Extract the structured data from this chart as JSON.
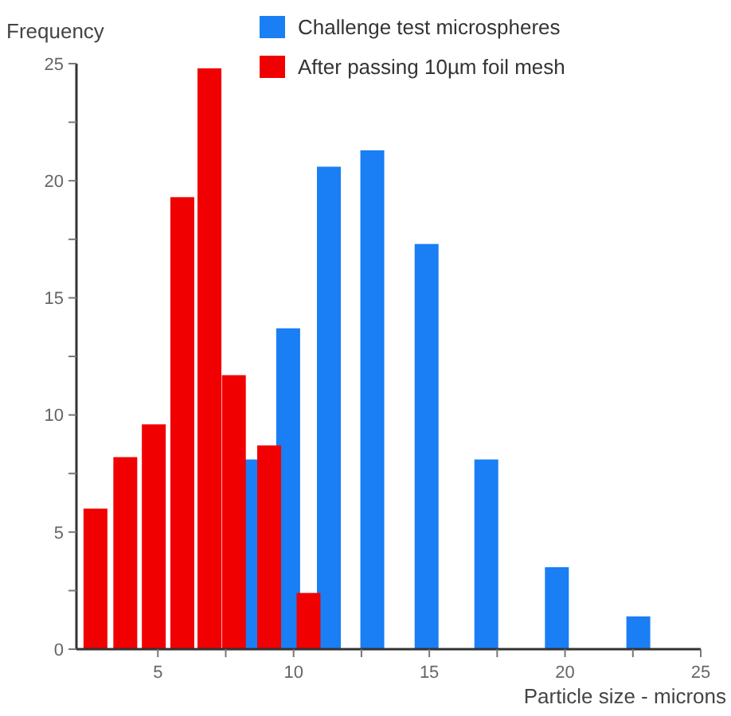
{
  "chart_data": {
    "type": "bar",
    "xlabel": "Particle size - microns",
    "ylabel": "Frequency",
    "xlim": [
      2,
      25
    ],
    "xticks": [
      5,
      {
        "value": 7.5,
        "label": null
      },
      10,
      {
        "value": 12.5,
        "label": null
      },
      15,
      {
        "value": 17.5,
        "label": null
      },
      20,
      {
        "value": 22.5,
        "label": null
      },
      25
    ],
    "ylim": [
      0,
      25
    ],
    "yticks": [
      0,
      {
        "value": 2.5,
        "label": null
      },
      5,
      {
        "value": 7.5,
        "label": null
      },
      10,
      {
        "value": 12.5,
        "label": null
      },
      15,
      {
        "value": 17.5,
        "label": null
      },
      20,
      {
        "value": 22.5,
        "label": null
      },
      25
    ],
    "legend": "top right",
    "grid": false,
    "series": [
      {
        "name": "Challenge test microspheres",
        "color": "#1a7ef5",
        "x": [
          8.5,
          9.8,
          11.3,
          12.9,
          14.9,
          17.1,
          19.7,
          22.7
        ],
        "values": [
          8.1,
          13.7,
          20.6,
          21.3,
          17.3,
          8.1,
          3.5,
          1.4
        ]
      },
      {
        "name": "After passing 10µm foil mesh",
        "color": "#f00000",
        "x": [
          2.7,
          3.8,
          4.85,
          5.9,
          6.9,
          7.8,
          9.1,
          10.55
        ],
        "values": [
          6,
          8.2,
          9.6,
          19.3,
          24.8,
          11.7,
          8.7,
          2.4
        ]
      }
    ]
  }
}
